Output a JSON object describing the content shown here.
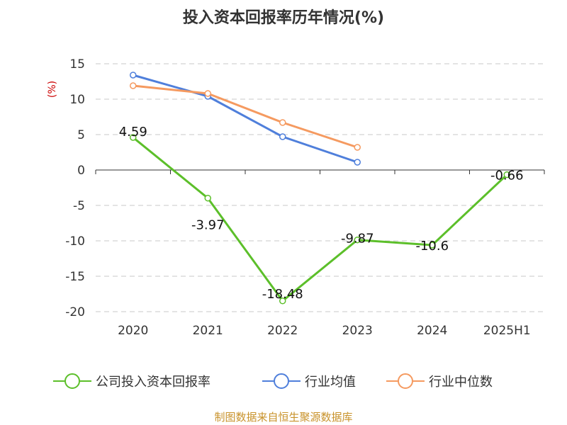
{
  "chart_data": {
    "type": "line",
    "title": "投入资本回报率历年情况(%)",
    "ylabel": "(%)",
    "xlabel": "",
    "categories": [
      "2020",
      "2021",
      "2022",
      "2023",
      "2024",
      "2025H1"
    ],
    "ylim": [
      -20,
      15
    ],
    "yticks": [
      15,
      10,
      5,
      0,
      -5,
      -10,
      -15,
      -20
    ],
    "grid": true,
    "legend_position": "bottom",
    "series": [
      {
        "name": "公司投入资本回报率",
        "color": "#5cbf2a",
        "values": [
          4.59,
          -3.97,
          -18.48,
          -9.87,
          -10.6,
          -0.66
        ],
        "labels": [
          "4.59",
          "-3.97",
          "-18.48",
          "-9.87",
          "-10.6",
          "-0.66"
        ]
      },
      {
        "name": "行业均值",
        "color": "#4f7fdb",
        "values": [
          13.4,
          10.4,
          4.7,
          1.1,
          null,
          null
        ]
      },
      {
        "name": "行业中位数",
        "color": "#f59a60",
        "values": [
          11.9,
          10.8,
          6.7,
          3.2,
          null,
          null
        ]
      }
    ]
  },
  "source": "制图数据来自恒生聚源数据库"
}
